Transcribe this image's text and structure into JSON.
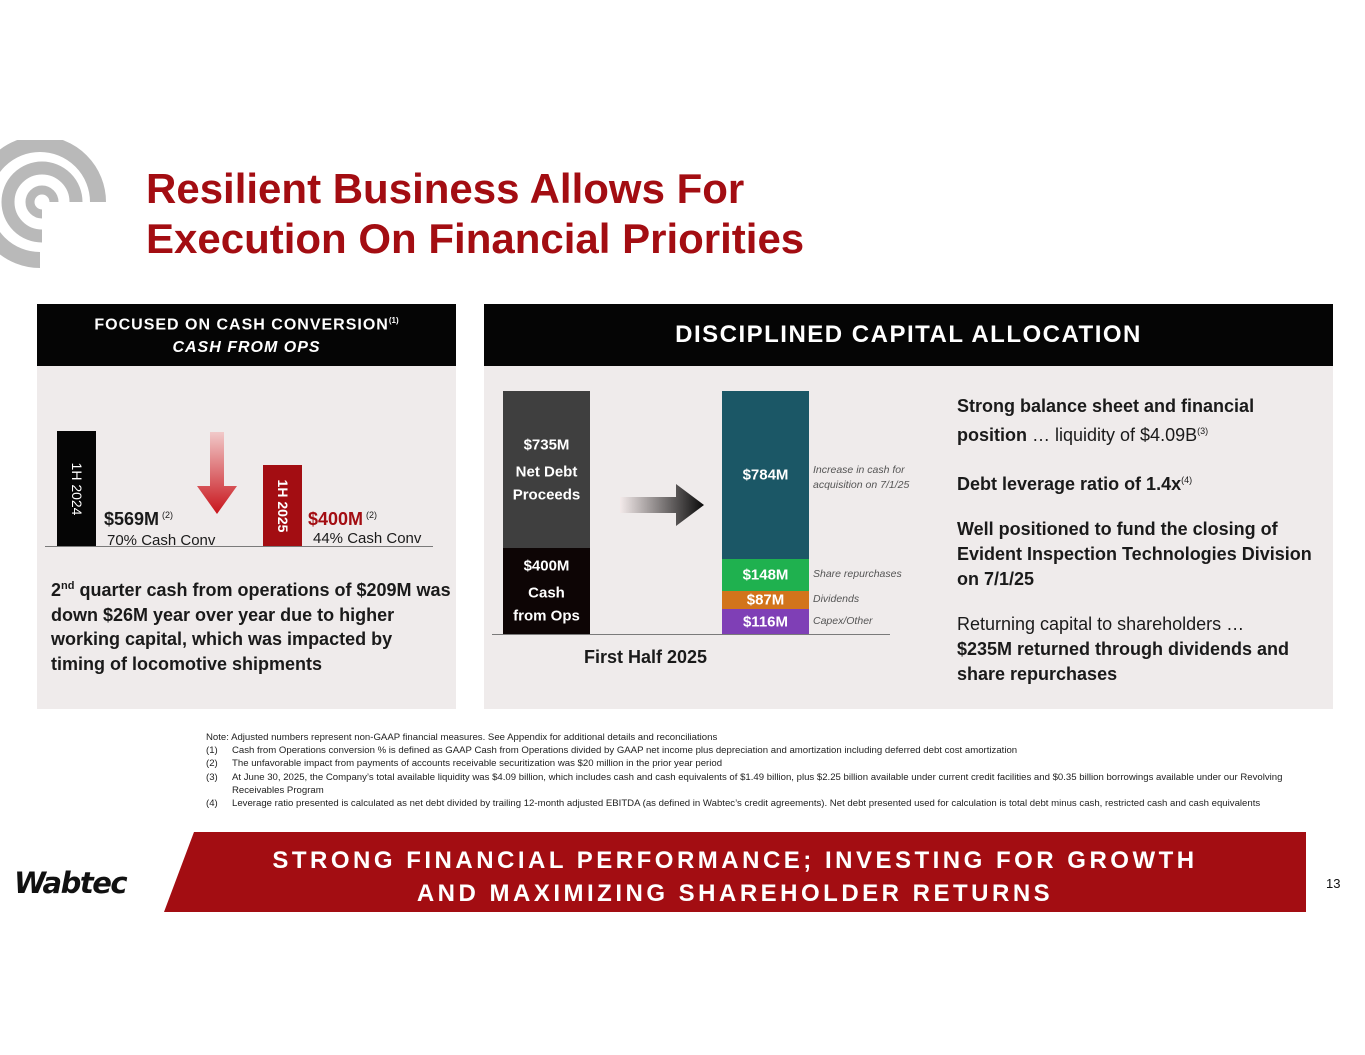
{
  "title": {
    "line1": "Resilient Business Allows For",
    "line2": "Execution On Financial Priorities"
  },
  "colors": {
    "brand_red": "#a30d12",
    "header_black": "#050505",
    "panel_bg": "#efebeb",
    "teal": "#1b5766",
    "green": "#1fb14f",
    "orange": "#d2741b",
    "purple": "#7f3fb6",
    "gray_bar": "#3f3f3f",
    "dark_bar": "#0d0505"
  },
  "left_panel": {
    "header_line1": "FOCUSED ON CASH CONVERSION",
    "header_sup": "(1)",
    "header_line2": "CASH FROM OPS",
    "bars": [
      {
        "period": "1H 2024",
        "value": "$569M",
        "note": "(2)",
        "conversion": "70% Cash Conv",
        "amount": 569,
        "color": "#050505"
      },
      {
        "period": "1H 2025",
        "value": "$400M",
        "note": "(2)",
        "conversion": "44% Cash Conv",
        "amount": 400,
        "color": "#a30d12"
      }
    ],
    "arrow_icon": "down-arrow-icon",
    "text_ordinal": "2",
    "text_ordinal_suffix": "nd",
    "text_body": " quarter cash from operations of $209M was down $26M year over year due to higher working capital, which was impacted by timing of locomotive shipments"
  },
  "right_panel": {
    "header": "DISCIPLINED CAPITAL ALLOCATION",
    "arrow_icon": "right-arrow-icon",
    "points": [
      {
        "bold": "Strong balance sheet and financial position",
        "normal": " … liquidity of $4.09B",
        "sup": "(3)"
      },
      {
        "bold": "Debt leverage ratio of 1.4x",
        "normal": "",
        "sup": "(4)"
      },
      {
        "bold": "Well positioned to fund the closing of Evident Inspection Technologies Division on 7/1/25",
        "normal": "",
        "sup": ""
      },
      {
        "normal_first": "Returning capital to shareholders …",
        "bold": "$235M returned through dividends and share repurchases"
      }
    ]
  },
  "chart_data": {
    "type": "bar",
    "stacked": true,
    "categories": [
      "First Half 2025"
    ],
    "sources": [
      {
        "name": "Cash from Ops",
        "label": "$400M",
        "value": 400,
        "label_lines": [
          "$400M",
          "Cash",
          "from Ops"
        ],
        "color": "#0d0505"
      },
      {
        "name": "Net Debt Proceeds",
        "label": "$735M",
        "value": 735,
        "label_lines": [
          "$735M",
          "Net Debt",
          "Proceeds"
        ],
        "color": "#3f3f3f"
      }
    ],
    "uses": [
      {
        "name": "Capex/Other",
        "label": "$116M",
        "value": 116,
        "color": "#7f3fb6"
      },
      {
        "name": "Dividends",
        "label": "$87M",
        "value": 87,
        "color": "#d2741b"
      },
      {
        "name": "Share repurchases",
        "label": "$148M",
        "value": 148,
        "color": "#1fb14f"
      },
      {
        "name": "Increase in cash for acquisition on 7/1/25",
        "label": "$784M",
        "value": 784,
        "color": "#1b5766"
      }
    ],
    "grid": false
  },
  "footnotes": [
    {
      "num": "",
      "text": "Note: Adjusted numbers represent non-GAAP financial measures.  See Appendix for additional details and reconciliations"
    },
    {
      "num": "(1)",
      "text": "Cash from Operations conversion % is defined as GAAP Cash from Operations divided by GAAP net income plus depreciation and amortization including deferred debt cost amortization"
    },
    {
      "num": "(2)",
      "text": "The unfavorable impact from payments of accounts receivable securitization was $20 million in the prior year period"
    },
    {
      "num": "(3)",
      "text": "At June 30, 2025, the Company’s total available liquidity was $4.09 billion, which includes cash and cash equivalents of $1.49 billion, plus $2.25 billion available under current credit facilities and $0.35 billion borrowings available under our Revolving Receivables Program"
    },
    {
      "num": "(4)",
      "text": "Leverage ratio presented is calculated as net debt divided by trailing 12-month adjusted EBITDA (as defined in Wabtec’s credit agreements). Net debt presented used for calculation is total debt minus cash, restricted cash and cash equivalents"
    }
  ],
  "banner": {
    "line1": "STRONG FINANCIAL PERFORMANCE; INVESTING FOR GROWTH",
    "line2": "AND MAXIMIZING SHAREHOLDER RETURNS"
  },
  "brand": "Wabtec",
  "page_number": "13"
}
